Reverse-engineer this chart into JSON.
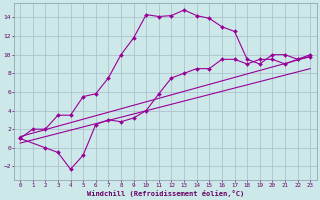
{
  "background_color": "#cce8e8",
  "grid_color": "#aabbcc",
  "line_color": "#990099",
  "marker_color": "#990099",
  "xlabel": "Windchill (Refroidissement éolien,°C)",
  "xlim": [
    -0.5,
    23.5
  ],
  "ylim": [
    -3.5,
    15.5
  ],
  "yticks": [
    -2,
    0,
    2,
    4,
    6,
    8,
    10,
    12,
    14
  ],
  "xticks": [
    0,
    1,
    2,
    3,
    4,
    5,
    6,
    7,
    8,
    9,
    10,
    11,
    12,
    13,
    14,
    15,
    16,
    17,
    18,
    19,
    20,
    21,
    22,
    23
  ],
  "series1_x": [
    0,
    1,
    2,
    3,
    4,
    5,
    6,
    7,
    8,
    9,
    10,
    11,
    12,
    13,
    14,
    15,
    16,
    17,
    18,
    19,
    20,
    21,
    22,
    23
  ],
  "series1_y": [
    1.0,
    2.0,
    2.0,
    3.5,
    3.5,
    5.5,
    5.8,
    7.5,
    10.0,
    11.8,
    14.3,
    14.1,
    14.2,
    14.8,
    14.2,
    13.9,
    13.0,
    12.5,
    9.5,
    9.0,
    10.0,
    10.0,
    9.5,
    10.0
  ],
  "series2_x": [
    0,
    2,
    3,
    4,
    5,
    6,
    7,
    8,
    9,
    10,
    11,
    12,
    13,
    14,
    15,
    16,
    17,
    18,
    19,
    20,
    21,
    22,
    23
  ],
  "series2_y": [
    1.0,
    0.0,
    -0.5,
    -2.3,
    -0.8,
    2.5,
    3.0,
    2.8,
    3.2,
    4.0,
    5.8,
    7.5,
    8.0,
    8.5,
    8.5,
    9.5,
    9.5,
    9.0,
    9.5,
    9.5,
    9.0,
    9.5,
    9.8
  ],
  "line1_x": [
    0,
    23
  ],
  "line1_y": [
    1.2,
    9.8
  ],
  "line2_x": [
    0,
    23
  ],
  "line2_y": [
    0.5,
    8.5
  ]
}
